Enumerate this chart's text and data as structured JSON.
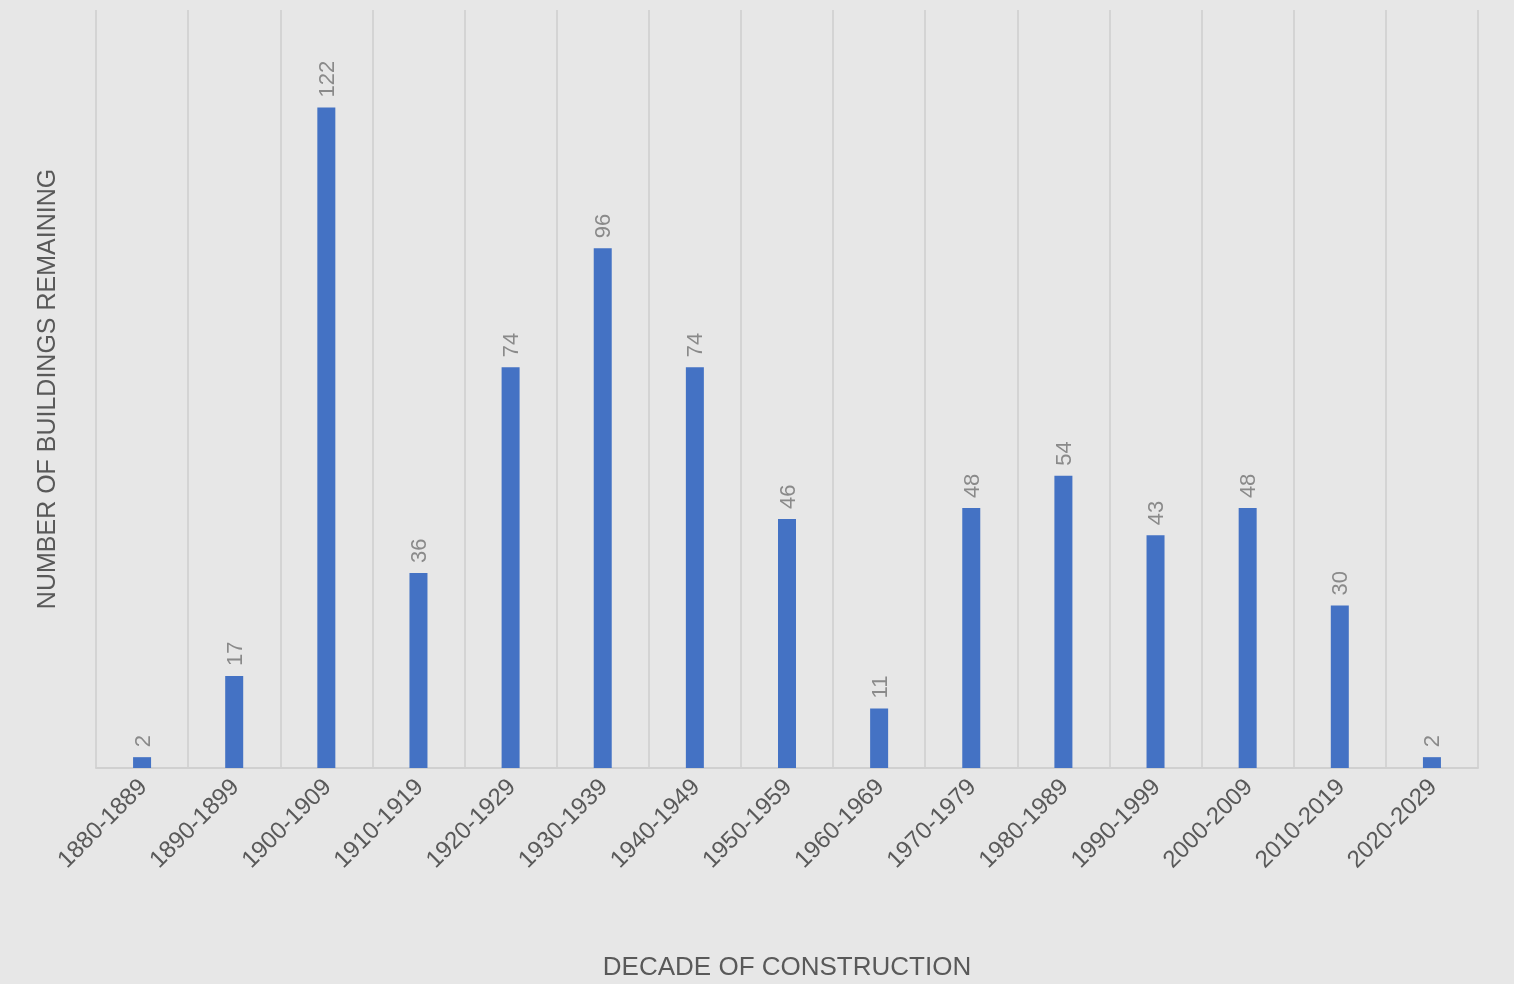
{
  "chart_data": {
    "type": "bar",
    "xlabel": "DECADE OF CONSTRUCTION",
    "ylabel": "NUMBER OF BUILDINGS REMAINING",
    "categories": [
      "1880-1889",
      "1890-1899",
      "1900-1909",
      "1910-1919",
      "1920-1929",
      "1930-1939",
      "1940-1949",
      "1950-1959",
      "1960-1969",
      "1970-1979",
      "1980-1989",
      "1990-1999",
      "2000-2009",
      "2010-2019",
      "2020-2029"
    ],
    "values": [
      2,
      17,
      122,
      36,
      74,
      96,
      74,
      46,
      11,
      48,
      54,
      43,
      48,
      30,
      2
    ],
    "color": "#4472c4",
    "data_labels": true,
    "grid": "x",
    "tick_labels": "x"
  }
}
